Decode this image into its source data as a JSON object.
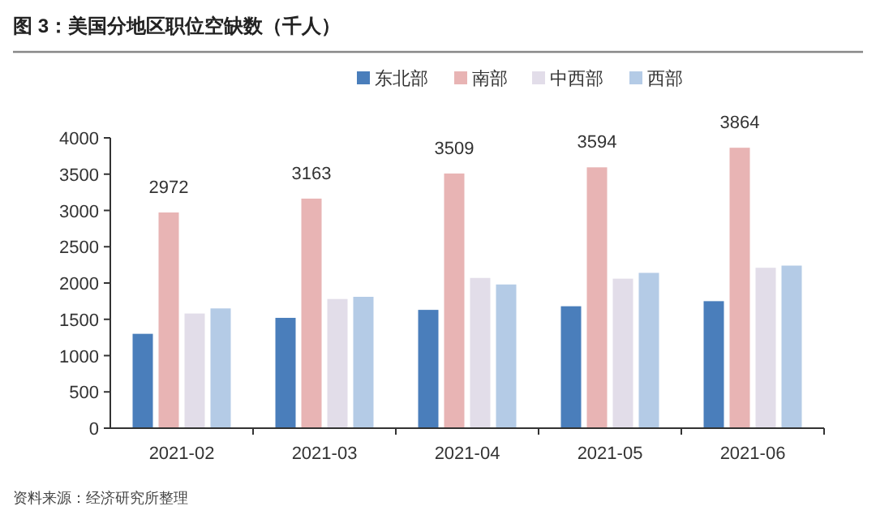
{
  "chart_data": {
    "type": "bar",
    "title": "图 3：美国分地区职位空缺数（千人）",
    "categories": [
      "2021-02",
      "2021-03",
      "2021-04",
      "2021-05",
      "2021-06"
    ],
    "series": [
      {
        "name": "东北部",
        "color": "#4a7ebb",
        "values": [
          1300,
          1520,
          1630,
          1680,
          1750
        ]
      },
      {
        "name": "南部",
        "color": "#e8b4b4",
        "values": [
          2972,
          3163,
          3509,
          3594,
          3864
        ],
        "value_labels": [
          "2972",
          "3163",
          "3509",
          "3594",
          "3864"
        ]
      },
      {
        "name": "中西部",
        "color": "#e2dde9",
        "values": [
          1580,
          1780,
          2070,
          2060,
          2210
        ]
      },
      {
        "name": "西部",
        "color": "#b4cbe6",
        "values": [
          1650,
          1810,
          1980,
          2140,
          2240
        ]
      }
    ],
    "ylim": [
      0,
      4000
    ],
    "yticks": [
      0,
      500,
      1000,
      1500,
      2000,
      2500,
      3000,
      3500,
      4000
    ],
    "grid": false,
    "legend": "top",
    "annotations": [
      "资料来源：经济研究所整理"
    ]
  }
}
